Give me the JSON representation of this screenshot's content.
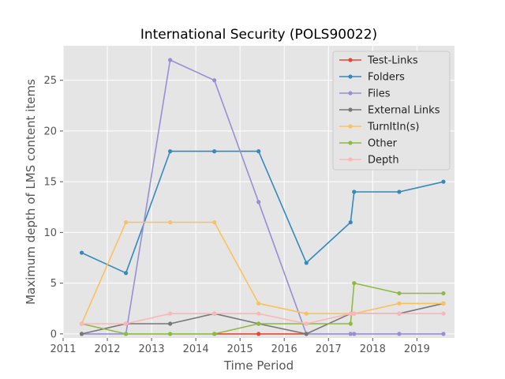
{
  "chart_data": {
    "type": "line",
    "title": "International Security (POLS90022)",
    "xlabel": "Time Period",
    "ylabel": "Maximum depth of LMS content items",
    "xlim": [
      2011.0,
      2019.85
    ],
    "ylim": [
      -0.4,
      28.4
    ],
    "xticks": [
      2011,
      2012,
      2013,
      2014,
      2015,
      2016,
      2017,
      2018,
      2019
    ],
    "yticks": [
      0,
      5,
      10,
      15,
      20,
      25
    ],
    "grid": true,
    "legend_position": "top-right",
    "series": [
      {
        "name": "Test-Links",
        "color": "#E24A33",
        "points": [
          [
            2014.42,
            0
          ],
          [
            2015.42,
            0
          ],
          [
            2016.5,
            0
          ]
        ]
      },
      {
        "name": "Folders",
        "color": "#348ABD",
        "points": [
          [
            2011.42,
            8
          ],
          [
            2012.42,
            6
          ],
          [
            2013.42,
            18
          ],
          [
            2014.42,
            18
          ],
          [
            2015.42,
            18
          ],
          [
            2016.5,
            7
          ],
          [
            2017.5,
            11
          ],
          [
            2017.58,
            14
          ],
          [
            2018.6,
            14
          ],
          [
            2019.6,
            15
          ]
        ]
      },
      {
        "name": "Files",
        "color": "#988ED5",
        "points": [
          [
            2011.42,
            0
          ],
          [
            2012.42,
            0
          ],
          [
            2013.42,
            27
          ],
          [
            2014.42,
            25
          ],
          [
            2015.42,
            13
          ],
          [
            2016.5,
            0
          ],
          [
            2017.5,
            0
          ],
          [
            2017.58,
            0
          ],
          [
            2018.6,
            0
          ],
          [
            2019.6,
            0
          ]
        ]
      },
      {
        "name": "External Links",
        "color": "#777777",
        "points": [
          [
            2011.42,
            0
          ],
          [
            2012.42,
            1
          ],
          [
            2013.42,
            1
          ],
          [
            2014.42,
            2
          ],
          [
            2015.42,
            1
          ],
          [
            2016.5,
            0
          ],
          [
            2017.5,
            2
          ],
          [
            2017.58,
            2
          ],
          [
            2018.6,
            2
          ],
          [
            2019.6,
            3
          ]
        ]
      },
      {
        "name": "TurnItIn(s)",
        "color": "#FBC15E",
        "points": [
          [
            2011.42,
            1
          ],
          [
            2012.42,
            11
          ],
          [
            2013.42,
            11
          ],
          [
            2014.42,
            11
          ],
          [
            2015.42,
            3
          ],
          [
            2016.5,
            2
          ],
          [
            2017.5,
            2
          ],
          [
            2017.58,
            2
          ],
          [
            2018.6,
            3
          ],
          [
            2019.6,
            3
          ]
        ]
      },
      {
        "name": "Other",
        "color": "#8EBA42",
        "points": [
          [
            2011.42,
            1
          ],
          [
            2012.42,
            0
          ],
          [
            2013.42,
            0
          ],
          [
            2014.42,
            0
          ],
          [
            2015.42,
            1
          ],
          [
            2016.5,
            1
          ],
          [
            2017.5,
            1
          ],
          [
            2017.58,
            5
          ],
          [
            2018.6,
            4
          ],
          [
            2019.6,
            4
          ]
        ]
      },
      {
        "name": "Depth",
        "color": "#FFB5B8",
        "points": [
          [
            2011.42,
            1
          ],
          [
            2012.42,
            1
          ],
          [
            2013.42,
            2
          ],
          [
            2014.42,
            2
          ],
          [
            2015.42,
            2
          ],
          [
            2016.5,
            1
          ],
          [
            2017.5,
            2
          ],
          [
            2017.58,
            2
          ],
          [
            2018.6,
            2
          ],
          [
            2019.6,
            2
          ]
        ]
      }
    ]
  }
}
